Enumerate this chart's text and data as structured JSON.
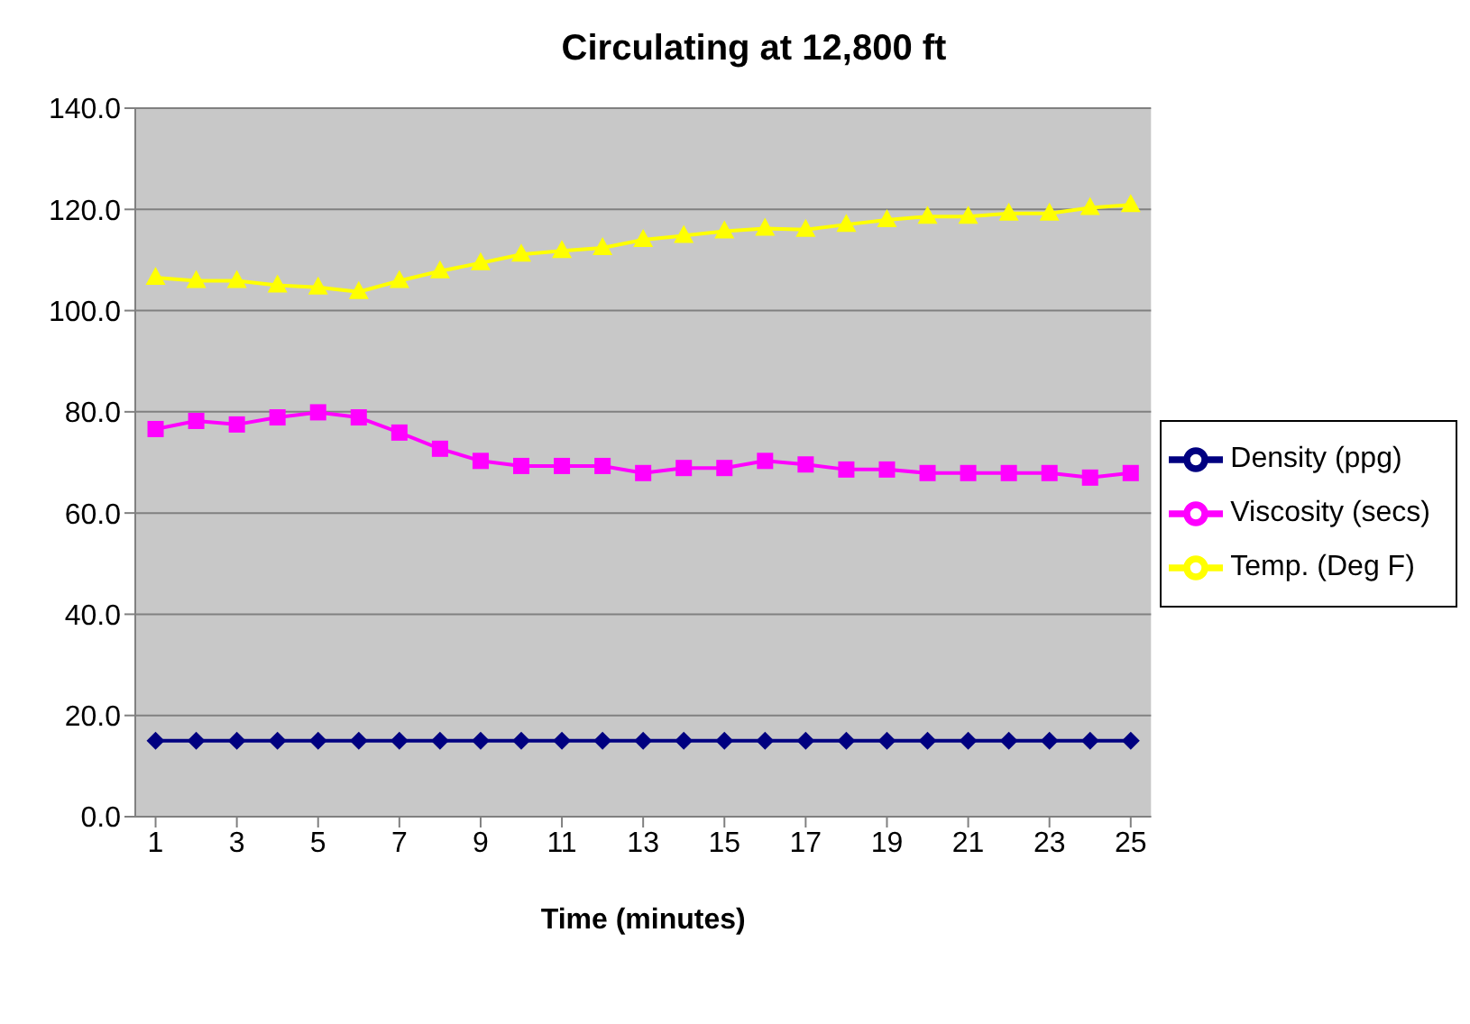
{
  "chart_data": {
    "type": "line",
    "title": "Circulating at 12,800 ft",
    "xlabel": "Time (minutes)",
    "x": [
      1,
      2,
      3,
      4,
      5,
      6,
      7,
      8,
      9,
      10,
      11,
      12,
      13,
      14,
      15,
      16,
      17,
      18,
      19,
      20,
      21,
      22,
      23,
      24,
      25
    ],
    "xlim": [
      0.5,
      25.5
    ],
    "xticks": [
      1,
      3,
      5,
      7,
      9,
      11,
      13,
      15,
      17,
      19,
      21,
      23,
      25
    ],
    "series": [
      {
        "name": "Density (ppg)",
        "color": "#000080",
        "marker": "diamond",
        "values": [
          15,
          15,
          15,
          15,
          15,
          15,
          15,
          15,
          15,
          15,
          15,
          15,
          15,
          15,
          15,
          15,
          15,
          15,
          15,
          15,
          15,
          15,
          15,
          15,
          15
        ]
      },
      {
        "name": "Viscosity (secs)",
        "color": "#ff00ff",
        "marker": "square",
        "values": [
          76.6,
          78.2,
          77.5,
          78.9,
          79.9,
          78.9,
          75.9,
          72.7,
          70.3,
          69.3,
          69.3,
          69.3,
          67.9,
          68.9,
          68.9,
          70.3,
          69.6,
          68.6,
          68.6,
          67.9,
          67.9,
          67.9,
          67.9,
          67,
          67.9
        ]
      },
      {
        "name": "Temp. (Deg F)",
        "color": "#ffff00",
        "marker": "triangle",
        "values": [
          106.5,
          105.9,
          105.9,
          105,
          104.6,
          103.7,
          105.9,
          107.8,
          109.4,
          111.1,
          111.8,
          112.4,
          114,
          114.8,
          115.7,
          116.2,
          116,
          117,
          117.9,
          118.6,
          118.6,
          119.2,
          119.2,
          120.3,
          120.9
        ]
      }
    ],
    "ylim": [
      0,
      140
    ],
    "yticks": [
      {
        "value": 0,
        "label": "0.0"
      },
      {
        "value": 20,
        "label": "20.0"
      },
      {
        "value": 40,
        "label": "40.0"
      },
      {
        "value": 60,
        "label": "60.0"
      },
      {
        "value": 80,
        "label": "80.0"
      },
      {
        "value": 100,
        "label": "100.0"
      },
      {
        "value": 120,
        "label": "120.0"
      },
      {
        "value": 140,
        "label": "140.0"
      }
    ],
    "grid": "y",
    "legend": "right",
    "line_style": "solid"
  }
}
